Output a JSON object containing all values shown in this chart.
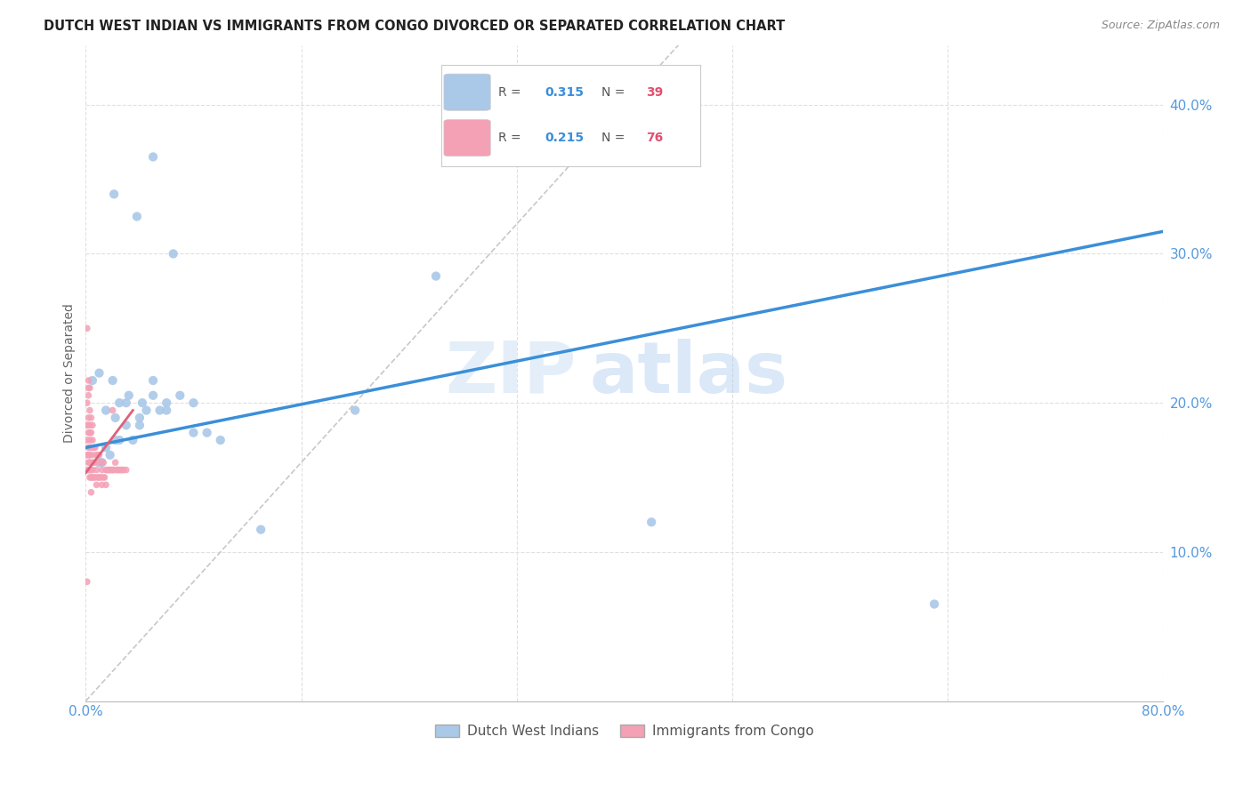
{
  "title": "DUTCH WEST INDIAN VS IMMIGRANTS FROM CONGO DIVORCED OR SEPARATED CORRELATION CHART",
  "source": "Source: ZipAtlas.com",
  "ylabel": "Divorced or Separated",
  "ytick_values": [
    0.0,
    0.1,
    0.2,
    0.3,
    0.4
  ],
  "xlim": [
    0.0,
    0.8
  ],
  "ylim": [
    0.0,
    0.44
  ],
  "dutch_x": [
    0.021,
    0.05,
    0.038,
    0.065,
    0.005,
    0.01,
    0.015,
    0.02,
    0.022,
    0.025,
    0.03,
    0.032,
    0.04,
    0.042,
    0.045,
    0.05,
    0.055,
    0.06,
    0.07,
    0.08,
    0.09,
    0.01,
    0.012,
    0.015,
    0.018,
    0.025,
    0.035,
    0.022,
    0.03,
    0.04,
    0.05,
    0.06,
    0.08,
    0.1,
    0.13,
    0.2,
    0.26,
    0.42,
    0.63
  ],
  "dutch_y": [
    0.34,
    0.365,
    0.325,
    0.3,
    0.215,
    0.22,
    0.195,
    0.215,
    0.19,
    0.2,
    0.2,
    0.205,
    0.19,
    0.2,
    0.195,
    0.215,
    0.195,
    0.2,
    0.205,
    0.18,
    0.18,
    0.16,
    0.16,
    0.17,
    0.165,
    0.175,
    0.175,
    0.175,
    0.185,
    0.185,
    0.205,
    0.195,
    0.2,
    0.175,
    0.115,
    0.195,
    0.285,
    0.12,
    0.065
  ],
  "congo_x": [
    0.001,
    0.001,
    0.001,
    0.001,
    0.001,
    0.002,
    0.002,
    0.002,
    0.002,
    0.002,
    0.002,
    0.002,
    0.002,
    0.002,
    0.003,
    0.003,
    0.003,
    0.003,
    0.003,
    0.003,
    0.003,
    0.003,
    0.003,
    0.004,
    0.004,
    0.004,
    0.004,
    0.004,
    0.004,
    0.005,
    0.005,
    0.005,
    0.005,
    0.005,
    0.006,
    0.006,
    0.006,
    0.007,
    0.007,
    0.007,
    0.008,
    0.008,
    0.008,
    0.009,
    0.009,
    0.01,
    0.01,
    0.011,
    0.011,
    0.012,
    0.012,
    0.013,
    0.013,
    0.014,
    0.015,
    0.015,
    0.016,
    0.017,
    0.018,
    0.019,
    0.02,
    0.021,
    0.022,
    0.023,
    0.024,
    0.025,
    0.026,
    0.027,
    0.028,
    0.03,
    0.001,
    0.001,
    0.002,
    0.003,
    0.004,
    0.02
  ],
  "congo_y": [
    0.155,
    0.165,
    0.175,
    0.185,
    0.2,
    0.155,
    0.16,
    0.165,
    0.17,
    0.18,
    0.185,
    0.19,
    0.205,
    0.215,
    0.15,
    0.155,
    0.16,
    0.165,
    0.17,
    0.175,
    0.18,
    0.185,
    0.195,
    0.15,
    0.155,
    0.16,
    0.17,
    0.18,
    0.19,
    0.15,
    0.155,
    0.165,
    0.175,
    0.185,
    0.15,
    0.16,
    0.17,
    0.15,
    0.16,
    0.17,
    0.145,
    0.155,
    0.165,
    0.15,
    0.165,
    0.15,
    0.165,
    0.15,
    0.16,
    0.145,
    0.155,
    0.15,
    0.16,
    0.15,
    0.145,
    0.155,
    0.155,
    0.155,
    0.155,
    0.155,
    0.155,
    0.155,
    0.16,
    0.155,
    0.155,
    0.155,
    0.155,
    0.155,
    0.155,
    0.155,
    0.25,
    0.08,
    0.21,
    0.21,
    0.14,
    0.195
  ],
  "blue_line_x": [
    0.0,
    0.8
  ],
  "blue_line_y": [
    0.17,
    0.315
  ],
  "pink_line_x": [
    0.0,
    0.035
  ],
  "pink_line_y": [
    0.153,
    0.195
  ],
  "diag_line_x": [
    0.0,
    0.44
  ],
  "diag_line_y": [
    0.0,
    0.44
  ],
  "dot_color_blue": "#aac8e8",
  "dot_color_pink": "#f4a0b5",
  "line_color_blue": "#3a8fd9",
  "line_color_pink": "#e0607a",
  "diag_color": "#c8c8c8",
  "grid_color": "#e0e0e0",
  "axis_color": "#5599dd",
  "title_color": "#222222",
  "watermark_zip": "ZIP",
  "watermark_atlas": "atlas",
  "background_color": "#ffffff"
}
